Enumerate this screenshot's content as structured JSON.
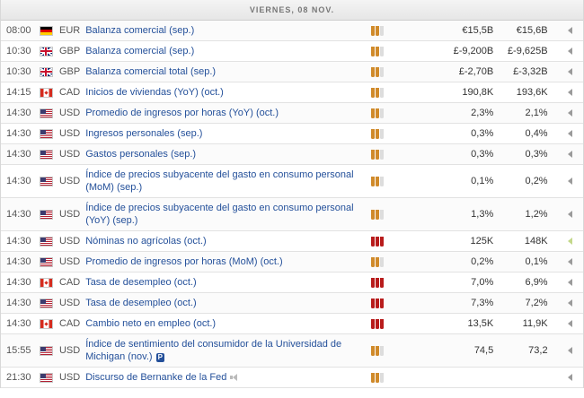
{
  "header": {
    "day": "VIERNES, 08 NOV."
  },
  "events": [
    {
      "time": "08:00",
      "flag": "germany-flag",
      "currency": "EUR",
      "title": "Balanza comercial (sep.)",
      "importance": 2,
      "actual": "€15,5B",
      "previous": "€15,6B",
      "tall": false
    },
    {
      "time": "10:30",
      "flag": "uk-flag",
      "currency": "GBP",
      "title": "Balanza comercial (sep.)",
      "importance": 2,
      "actual": "£-9,200B",
      "previous": "£-9,625B",
      "tall": false
    },
    {
      "time": "10:30",
      "flag": "uk-flag",
      "currency": "GBP",
      "title": "Balanza comercial total (sep.)",
      "importance": 2,
      "actual": "£-2,70B",
      "previous": "£-3,32B",
      "tall": false
    },
    {
      "time": "14:15",
      "flag": "canada-flag",
      "currency": "CAD",
      "title": "Inicios de viviendas (YoY) (oct.)",
      "importance": 2,
      "actual": "190,8K",
      "previous": "193,6K",
      "tall": false
    },
    {
      "time": "14:30",
      "flag": "usa-flag",
      "currency": "USD",
      "title": "Promedio de ingresos por horas (YoY) (oct.)",
      "importance": 2,
      "actual": "2,3%",
      "previous": "2,1%",
      "tall": false
    },
    {
      "time": "14:30",
      "flag": "usa-flag",
      "currency": "USD",
      "title": "Ingresos personales (sep.)",
      "importance": 2,
      "actual": "0,3%",
      "previous": "0,4%",
      "tall": false
    },
    {
      "time": "14:30",
      "flag": "usa-flag",
      "currency": "USD",
      "title": "Gastos personales (sep.)",
      "importance": 2,
      "actual": "0,3%",
      "previous": "0,3%",
      "tall": false
    },
    {
      "time": "14:30",
      "flag": "usa-flag",
      "currency": "USD",
      "title": "Índice de precios subyacente del gasto en consumo personal (MoM) (sep.)",
      "importance": 2,
      "actual": "0,1%",
      "previous": "0,2%",
      "tall": true
    },
    {
      "time": "14:30",
      "flag": "usa-flag",
      "currency": "USD",
      "title": "Índice de precios subyacente del gasto en consumo personal (YoY) (sep.)",
      "importance": 2,
      "actual": "1,3%",
      "previous": "1,2%",
      "tall": true
    },
    {
      "time": "14:30",
      "flag": "usa-flag",
      "currency": "USD",
      "title": "Nóminas no agrícolas (oct.)",
      "importance": 3,
      "actual": "125K",
      "previous": "148K",
      "tall": false,
      "arrow": "green"
    },
    {
      "time": "14:30",
      "flag": "usa-flag",
      "currency": "USD",
      "title": "Promedio de ingresos por horas (MoM) (oct.)",
      "importance": 2,
      "actual": "0,2%",
      "previous": "0,1%",
      "tall": false
    },
    {
      "time": "14:30",
      "flag": "canada-flag",
      "currency": "CAD",
      "title": "Tasa de desempleo (oct.)",
      "importance": 3,
      "actual": "7,0%",
      "previous": "6,9%",
      "tall": false
    },
    {
      "time": "14:30",
      "flag": "usa-flag",
      "currency": "USD",
      "title": "Tasa de desempleo (oct.)",
      "importance": 3,
      "actual": "7,3%",
      "previous": "7,2%",
      "tall": false
    },
    {
      "time": "14:30",
      "flag": "canada-flag",
      "currency": "CAD",
      "title": "Cambio neto en empleo (oct.)",
      "importance": 3,
      "actual": "13,5K",
      "previous": "11,9K",
      "tall": false
    },
    {
      "time": "15:55",
      "flag": "usa-flag",
      "currency": "USD",
      "title": "Índice de sentimiento del consumidor de la Universidad de Michigan (nov.)",
      "badge": "P",
      "importance": 2,
      "actual": "74,5",
      "previous": "73,2",
      "tall": true
    },
    {
      "time": "21:30",
      "flag": "usa-flag",
      "currency": "USD",
      "title": "Discurso de Bernanke de la Fed",
      "speech": true,
      "importance": 2,
      "actual": "",
      "previous": "",
      "tall": false
    }
  ]
}
